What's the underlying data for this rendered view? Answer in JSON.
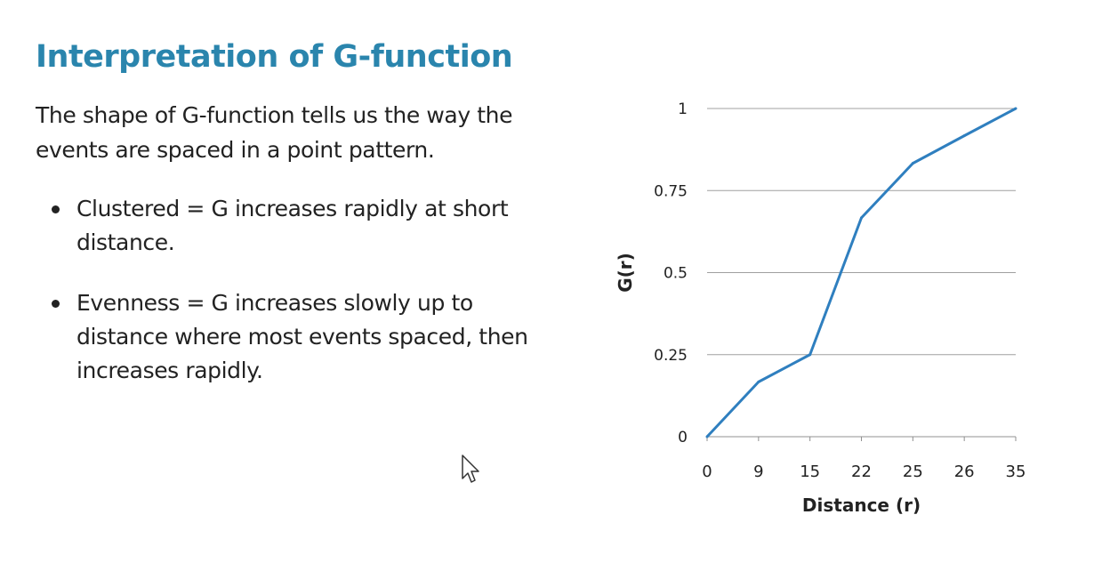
{
  "slide": {
    "title": "Interpretation of G-function",
    "intro": "The shape of G-function tells us the way the events are spaced in a point pattern.",
    "bullets": [
      "Clustered = G increases rapidly at short distance.",
      "Evenness = G increases slowly up to distance where most events spaced, then increases rapidly."
    ]
  },
  "chart_data": {
    "type": "line",
    "title": "",
    "xlabel": "Distance (r)",
    "ylabel": "G(r)",
    "categories": [
      "0",
      "9",
      "15",
      "22",
      "25",
      "26",
      "35"
    ],
    "series": [
      {
        "values": [
          0,
          0.167,
          0.25,
          0.667,
          0.833,
          0.917,
          1.0
        ],
        "color": "#2f7fbf"
      }
    ],
    "y_ticks": [
      0,
      0.25,
      0.5,
      0.75,
      1
    ],
    "y_tick_labels": [
      "0",
      "0.25",
      "0.5",
      "0.75",
      "1"
    ],
    "ylim": [
      0,
      1
    ],
    "grid": true,
    "legend": "none"
  },
  "colors": {
    "title": "#2a85ad",
    "text": "#222222",
    "line": "#2f7fbf",
    "grid": "#a0a0a0"
  },
  "icons": {
    "cursor": "arrow-pointer-icon"
  }
}
